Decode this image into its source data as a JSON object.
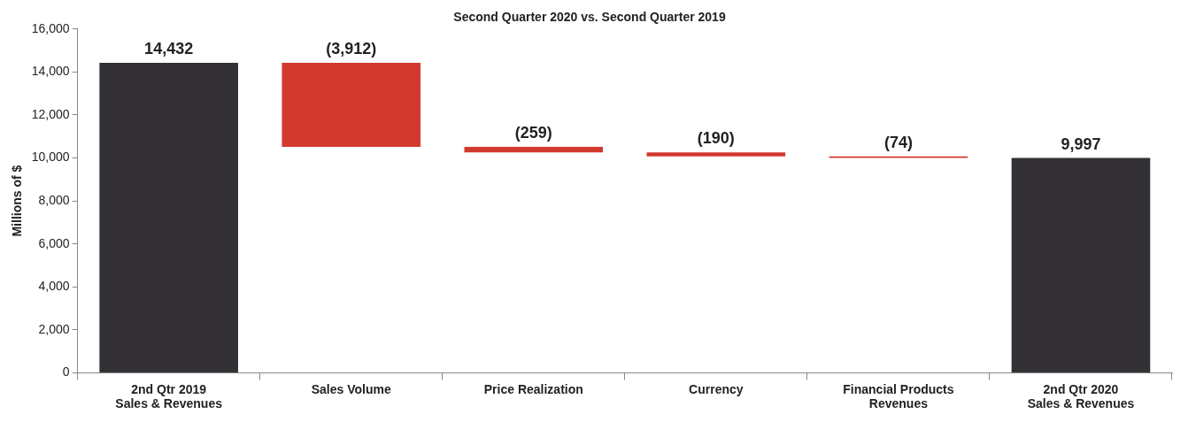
{
  "chart_data": {
    "type": "bar",
    "title": "Second Quarter 2020 vs. Second Quarter 2019",
    "ylabel": "Millions of $",
    "categories": [
      "2nd Qtr 2019\nSales & Revenues",
      "Sales Volume",
      "Price Realization",
      "Currency",
      "Financial Products\nRevenues",
      "2nd Qtr 2020\nSales & Revenues"
    ],
    "values": [
      14432,
      -3912,
      -259,
      -190,
      -74,
      9997
    ],
    "base": [
      0,
      14432,
      10520,
      10261,
      10071,
      0
    ],
    "colors": [
      "#333136",
      "#d23a2f",
      "#d23a2f",
      "#d23a2f",
      "#d23a2f",
      "#333136"
    ],
    "value_labels": [
      "14,432",
      "(3,912)",
      "(259)",
      "(190)",
      "(74)",
      "9,997"
    ],
    "ylim": [
      0,
      16000
    ],
    "yticks": [
      0,
      {
        "value": 2000,
        "label": "2,000"
      },
      {
        "value": 4000,
        "label": "4,000"
      },
      {
        "value": 6000,
        "label": "6,000"
      },
      {
        "value": 8000,
        "label": "8,000"
      },
      {
        "value": 10000,
        "label": "10,000"
      },
      {
        "value": 12000,
        "label": "12,000"
      },
      {
        "value": 14000,
        "label": "14,000"
      },
      {
        "value": 16000,
        "label": "16,000"
      }
    ],
    "grid": false,
    "legend": false
  }
}
